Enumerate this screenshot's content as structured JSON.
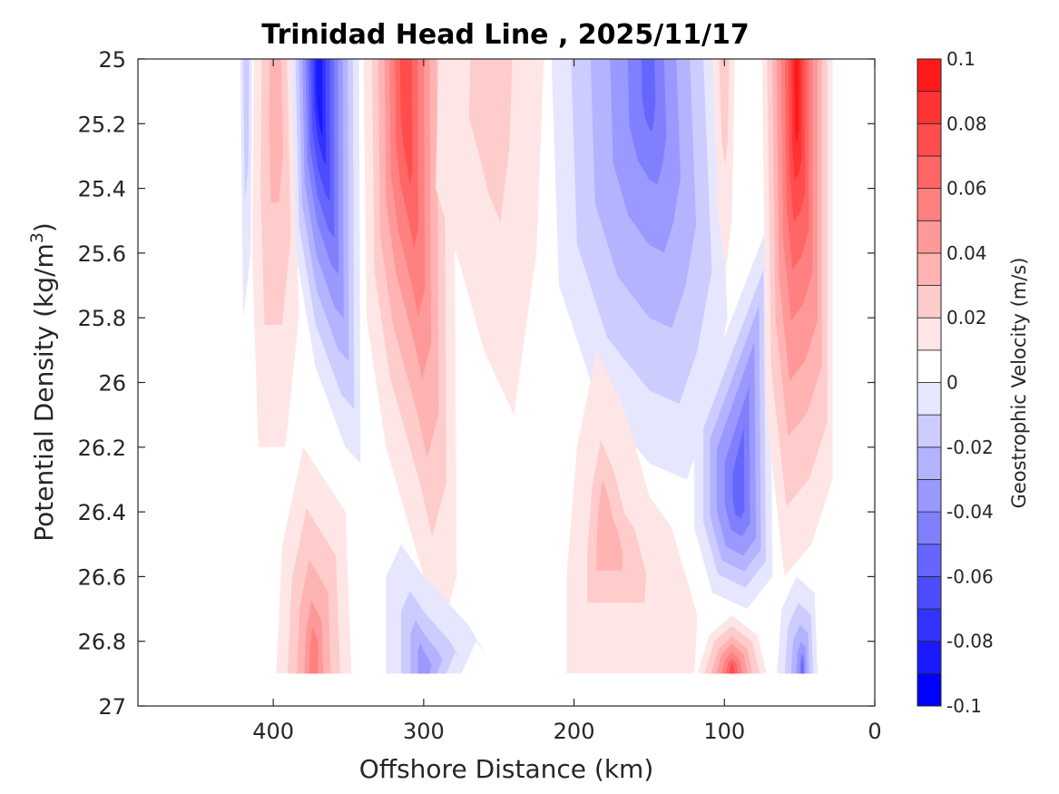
{
  "chart_data": {
    "type": "heatmap",
    "subtype": "filled-contour",
    "title": "Trinidad Head Line , 2025/11/17",
    "xlabel": "Offshore Distance (km)",
    "ylabel_main": "Potential Density (kg/m",
    "ylabel_sup": "3",
    "ylabel_close": ")",
    "xlim": [
      490,
      0
    ],
    "x_reversed": true,
    "ylim": [
      25,
      27
    ],
    "y_reversed": true,
    "xticks": [
      400,
      300,
      200,
      100,
      0
    ],
    "xtick_labels": [
      "400",
      "300",
      "200",
      "100",
      "0"
    ],
    "yticks": [
      25,
      25.2,
      25.4,
      25.6,
      25.8,
      26,
      26.2,
      26.4,
      26.6,
      26.8,
      27
    ],
    "ytick_labels": [
      "25",
      "25.2",
      "25.4",
      "25.6",
      "25.8",
      "26",
      "26.2",
      "26.4",
      "26.6",
      "26.8",
      "27"
    ],
    "colorbar": {
      "label": "Geostrophic Velocity (m/s)",
      "range": [
        -0.1,
        0.1
      ],
      "levels": [
        -0.1,
        -0.09,
        -0.08,
        -0.07,
        -0.06,
        -0.05,
        -0.04,
        -0.03,
        -0.02,
        -0.01,
        0,
        0.01,
        0.02,
        0.03,
        0.04,
        0.05,
        0.06,
        0.07,
        0.08,
        0.09,
        0.1
      ],
      "colors": [
        "#0000ff",
        "#1a1aff",
        "#3333ff",
        "#4d4dff",
        "#6666ff",
        "#8080ff",
        "#9999ff",
        "#b3b3ff",
        "#ccccff",
        "#e6e6ff",
        "#ffffff",
        "#ffffff",
        "#ffe6e6",
        "#ffcccc",
        "#ffb3b3",
        "#ff9999",
        "#ff8080",
        "#ff6666",
        "#ff4d4d",
        "#ff3333",
        "#ff1a1a",
        "#ff0000"
      ],
      "ticks": [
        0.1,
        0.08,
        0.06,
        0.04,
        0.02,
        0,
        -0.02,
        -0.04,
        -0.06,
        -0.08,
        -0.1
      ],
      "tick_labels": [
        "0.1",
        "0.08",
        "0.06",
        "0.04",
        "0.02",
        "0",
        "-0.02",
        "-0.04",
        "-0.06",
        "-0.08",
        "-0.1"
      ]
    },
    "features": [
      {
        "name": "jet-offshore-neg-narrow",
        "x_center_km": 418,
        "peak_velocity": -0.03,
        "density_range": [
          25,
          25.8
        ]
      },
      {
        "name": "core-pos-400km",
        "x_center_km": 398,
        "peak_velocity": 0.03,
        "density_range": [
          25,
          26.2
        ]
      },
      {
        "name": "core-neg-370km",
        "x_center_km": 370,
        "peak_velocity": -0.1,
        "density_range": [
          25,
          26.25
        ]
      },
      {
        "name": "core-pos-310km",
        "x_center_km": 312,
        "peak_velocity": 0.07,
        "density_range": [
          25,
          26.6
        ]
      },
      {
        "name": "core-pos-350km-deep",
        "x_center_km": 373,
        "peak_velocity": 0.05,
        "density_range": [
          26.3,
          26.9
        ]
      },
      {
        "name": "core-neg-290km-deep",
        "x_center_km": 300,
        "peak_velocity": -0.04,
        "density_range": [
          26.6,
          26.9
        ]
      },
      {
        "name": "band-pos-260km",
        "x_center_km": 255,
        "peak_velocity": 0.02,
        "density_range": [
          25,
          25.7
        ]
      },
      {
        "name": "core-neg-150km",
        "x_center_km": 150,
        "peak_velocity": -0.06,
        "density_range": [
          25,
          26.3
        ]
      },
      {
        "name": "core-pos-180km",
        "x_center_km": 180,
        "peak_velocity": 0.03,
        "density_range": [
          26,
          26.8
        ]
      },
      {
        "name": "core-neg-95km",
        "x_center_km": 90,
        "peak_velocity": -0.06,
        "density_range": [
          25.5,
          26.65
        ]
      },
      {
        "name": "core-pos-100km-deep",
        "x_center_km": 95,
        "peak_velocity": 0.09,
        "density_range": [
          26.8,
          26.9
        ]
      },
      {
        "name": "core-pos-50km",
        "x_center_km": 52,
        "peak_velocity": 0.09,
        "density_range": [
          25,
          26.6
        ]
      },
      {
        "name": "core-neg-50km-deep",
        "x_center_km": 48,
        "peak_velocity": -0.06,
        "density_range": [
          26.6,
          26.9
        ]
      },
      {
        "name": "band-pos-100km-upper",
        "x_center_km": 100,
        "peak_velocity": 0.02,
        "density_range": [
          25,
          25.6
        ]
      }
    ]
  }
}
